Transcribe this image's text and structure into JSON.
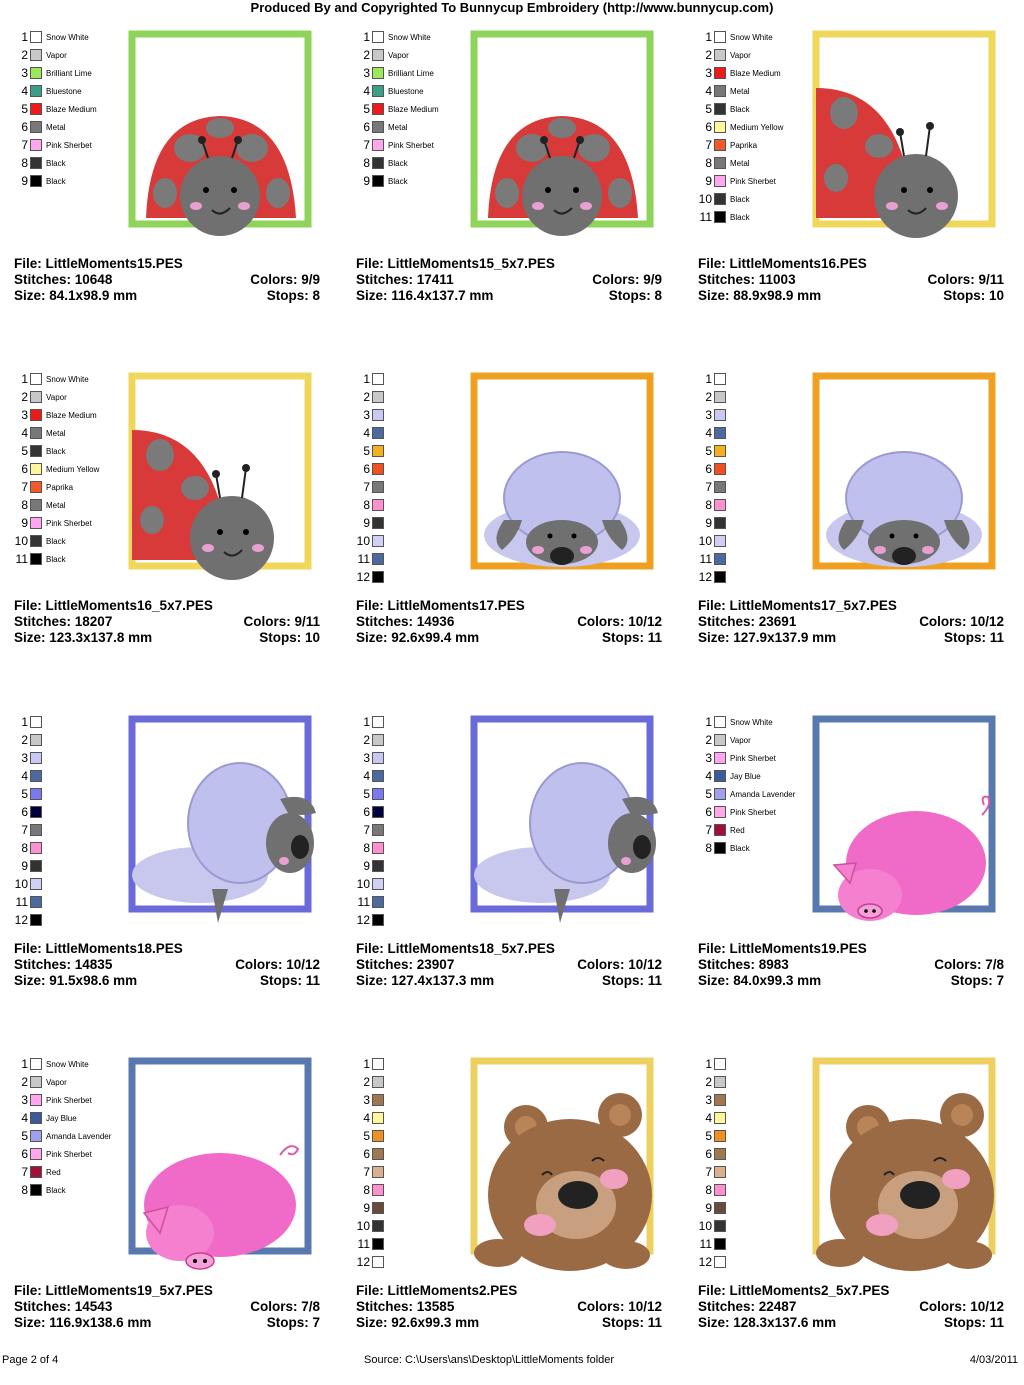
{
  "header": "Produced By and Copyrighted To Bunnycup Embroidery (http://www.bunnycup.com)",
  "labels": {
    "file": "File:",
    "stitches": "Stitches:",
    "size": "Size:",
    "colors": "Colors:",
    "stops": "Stops:"
  },
  "designs": [
    {
      "file": "LittleMoments15.PES",
      "stitches": "10648",
      "size": "84.1x98.9 mm",
      "colors": "9/9",
      "stops": "8",
      "type": "ladybug",
      "variant": "a",
      "frame": "#8fd45a",
      "thread": [
        {
          "n": "1",
          "c": "#ffffff",
          "name": "Snow White"
        },
        {
          "n": "2",
          "c": "#c8c8c8",
          "name": "Vapor"
        },
        {
          "n": "3",
          "c": "#9be85a",
          "name": "Brilliant Lime"
        },
        {
          "n": "4",
          "c": "#3a9f86",
          "name": "Bluestone"
        },
        {
          "n": "5",
          "c": "#ee1a1a",
          "name": "Blaze Medium"
        },
        {
          "n": "6",
          "c": "#787878",
          "name": "Metal"
        },
        {
          "n": "7",
          "c": "#ffa6ee",
          "name": "Pink Sherbet"
        },
        {
          "n": "8",
          "c": "#333333",
          "name": "Black"
        },
        {
          "n": "9",
          "c": "#000000",
          "name": "Black"
        }
      ]
    },
    {
      "file": "LittleMoments15_5x7.PES",
      "stitches": "17411",
      "size": "116.4x137.7 mm",
      "colors": "9/9",
      "stops": "8",
      "type": "ladybug",
      "variant": "a",
      "frame": "#8fd45a",
      "thread": [
        {
          "n": "1",
          "c": "#ffffff",
          "name": "Snow White"
        },
        {
          "n": "2",
          "c": "#c8c8c8",
          "name": "Vapor"
        },
        {
          "n": "3",
          "c": "#9be85a",
          "name": "Brilliant Lime"
        },
        {
          "n": "4",
          "c": "#3a9f86",
          "name": "Bluestone"
        },
        {
          "n": "5",
          "c": "#ee1a1a",
          "name": "Blaze Medium"
        },
        {
          "n": "6",
          "c": "#787878",
          "name": "Metal"
        },
        {
          "n": "7",
          "c": "#ffa6ee",
          "name": "Pink Sherbet"
        },
        {
          "n": "8",
          "c": "#333333",
          "name": "Black"
        },
        {
          "n": "9",
          "c": "#000000",
          "name": "Black"
        }
      ]
    },
    {
      "file": "LittleMoments16.PES",
      "stitches": "11003",
      "size": "88.9x98.9 mm",
      "colors": "9/11",
      "stops": "10",
      "type": "ladybug",
      "variant": "b",
      "frame": "#efd75c",
      "thread": [
        {
          "n": "1",
          "c": "#ffffff",
          "name": "Snow White"
        },
        {
          "n": "2",
          "c": "#c8c8c8",
          "name": "Vapor"
        },
        {
          "n": "3",
          "c": "#ee1a1a",
          "name": "Blaze Medium"
        },
        {
          "n": "4",
          "c": "#787878",
          "name": "Metal"
        },
        {
          "n": "5",
          "c": "#333333",
          "name": "Black"
        },
        {
          "n": "6",
          "c": "#fff799",
          "name": "Medium Yellow"
        },
        {
          "n": "7",
          "c": "#f25a2a",
          "name": "Paprika"
        },
        {
          "n": "8",
          "c": "#787878",
          "name": "Metal"
        },
        {
          "n": "9",
          "c": "#ffa6ee",
          "name": "Pink Sherbet"
        },
        {
          "n": "10",
          "c": "#333333",
          "name": "Black"
        },
        {
          "n": "11",
          "c": "#000000",
          "name": "Black"
        }
      ]
    },
    {
      "file": "LittleMoments16_5x7.PES",
      "stitches": "18207",
      "size": "123.3x137.8 mm",
      "colors": "9/11",
      "stops": "10",
      "type": "ladybug",
      "variant": "b",
      "frame": "#efd75c",
      "thread": [
        {
          "n": "1",
          "c": "#ffffff",
          "name": "Snow White"
        },
        {
          "n": "2",
          "c": "#c8c8c8",
          "name": "Vapor"
        },
        {
          "n": "3",
          "c": "#ee1a1a",
          "name": "Blaze Medium"
        },
        {
          "n": "4",
          "c": "#787878",
          "name": "Metal"
        },
        {
          "n": "5",
          "c": "#333333",
          "name": "Black"
        },
        {
          "n": "6",
          "c": "#fff799",
          "name": "Medium Yellow"
        },
        {
          "n": "7",
          "c": "#f25a2a",
          "name": "Paprika"
        },
        {
          "n": "8",
          "c": "#787878",
          "name": "Metal"
        },
        {
          "n": "9",
          "c": "#ffa6ee",
          "name": "Pink Sherbet"
        },
        {
          "n": "10",
          "c": "#333333",
          "name": "Black"
        },
        {
          "n": "11",
          "c": "#000000",
          "name": "Black"
        }
      ]
    },
    {
      "file": "LittleMoments17.PES",
      "stitches": "14936",
      "size": "92.6x99.4 mm",
      "colors": "10/12",
      "stops": "11",
      "type": "sheep",
      "variant": "a",
      "frame": "#f0a020",
      "thread": [
        {
          "n": "1",
          "c": "#ffffff",
          "name": ""
        },
        {
          "n": "2",
          "c": "#c8c8c8",
          "name": ""
        },
        {
          "n": "3",
          "c": "#c8c8f5",
          "name": ""
        },
        {
          "n": "4",
          "c": "#4a6aa0",
          "name": ""
        },
        {
          "n": "5",
          "c": "#f5b020",
          "name": ""
        },
        {
          "n": "6",
          "c": "#f05020",
          "name": ""
        },
        {
          "n": "7",
          "c": "#787878",
          "name": ""
        },
        {
          "n": "8",
          "c": "#ff90d0",
          "name": ""
        },
        {
          "n": "9",
          "c": "#333333",
          "name": ""
        },
        {
          "n": "10",
          "c": "#d0d0f5",
          "name": ""
        },
        {
          "n": "11",
          "c": "#4a6aa0",
          "name": ""
        },
        {
          "n": "12",
          "c": "#000000",
          "name": ""
        }
      ]
    },
    {
      "file": "LittleMoments17_5x7.PES",
      "stitches": "23691",
      "size": "127.9x137.9 mm",
      "colors": "10/12",
      "stops": "11",
      "type": "sheep",
      "variant": "a",
      "frame": "#f0a020",
      "thread": [
        {
          "n": "1",
          "c": "#ffffff",
          "name": ""
        },
        {
          "n": "2",
          "c": "#c8c8c8",
          "name": ""
        },
        {
          "n": "3",
          "c": "#c8c8f5",
          "name": ""
        },
        {
          "n": "4",
          "c": "#4a6aa0",
          "name": ""
        },
        {
          "n": "5",
          "c": "#f5b020",
          "name": ""
        },
        {
          "n": "6",
          "c": "#f05020",
          "name": ""
        },
        {
          "n": "7",
          "c": "#787878",
          "name": ""
        },
        {
          "n": "8",
          "c": "#ff90d0",
          "name": ""
        },
        {
          "n": "9",
          "c": "#333333",
          "name": ""
        },
        {
          "n": "10",
          "c": "#d0d0f5",
          "name": ""
        },
        {
          "n": "11",
          "c": "#4a6aa0",
          "name": ""
        },
        {
          "n": "12",
          "c": "#000000",
          "name": ""
        }
      ]
    },
    {
      "file": "LittleMoments18.PES",
      "stitches": "14835",
      "size": "91.5x98.6 mm",
      "colors": "10/12",
      "stops": "11",
      "type": "sheep",
      "variant": "b",
      "frame": "#6a6ad8",
      "thread": [
        {
          "n": "1",
          "c": "#ffffff",
          "name": ""
        },
        {
          "n": "2",
          "c": "#c8c8c8",
          "name": ""
        },
        {
          "n": "3",
          "c": "#c8c8f5",
          "name": ""
        },
        {
          "n": "4",
          "c": "#4a6aa0",
          "name": ""
        },
        {
          "n": "5",
          "c": "#7a7af0",
          "name": ""
        },
        {
          "n": "6",
          "c": "#000040",
          "name": ""
        },
        {
          "n": "7",
          "c": "#787878",
          "name": ""
        },
        {
          "n": "8",
          "c": "#ff90d0",
          "name": ""
        },
        {
          "n": "9",
          "c": "#333333",
          "name": ""
        },
        {
          "n": "10",
          "c": "#d0d0f5",
          "name": ""
        },
        {
          "n": "11",
          "c": "#4a6aa0",
          "name": ""
        },
        {
          "n": "12",
          "c": "#000000",
          "name": ""
        }
      ]
    },
    {
      "file": "LittleMoments18_5x7.PES",
      "stitches": "23907",
      "size": "127.4x137.3 mm",
      "colors": "10/12",
      "stops": "11",
      "type": "sheep",
      "variant": "b",
      "frame": "#6a6ad8",
      "thread": [
        {
          "n": "1",
          "c": "#ffffff",
          "name": ""
        },
        {
          "n": "2",
          "c": "#c8c8c8",
          "name": ""
        },
        {
          "n": "3",
          "c": "#c8c8f5",
          "name": ""
        },
        {
          "n": "4",
          "c": "#4a6aa0",
          "name": ""
        },
        {
          "n": "5",
          "c": "#7a7af0",
          "name": ""
        },
        {
          "n": "6",
          "c": "#000040",
          "name": ""
        },
        {
          "n": "7",
          "c": "#787878",
          "name": ""
        },
        {
          "n": "8",
          "c": "#ff90d0",
          "name": ""
        },
        {
          "n": "9",
          "c": "#333333",
          "name": ""
        },
        {
          "n": "10",
          "c": "#d0d0f5",
          "name": ""
        },
        {
          "n": "11",
          "c": "#4a6aa0",
          "name": ""
        },
        {
          "n": "12",
          "c": "#000000",
          "name": ""
        }
      ]
    },
    {
      "file": "LittleMoments19.PES",
      "stitches": "8983",
      "size": "84.0x99.3 mm",
      "colors": "7/8",
      "stops": "7",
      "type": "pig",
      "variant": "a",
      "frame": "#5a78b0",
      "thread": [
        {
          "n": "1",
          "c": "#ffffff",
          "name": "Snow White"
        },
        {
          "n": "2",
          "c": "#c8c8c8",
          "name": "Vapor"
        },
        {
          "n": "3",
          "c": "#ffa6ee",
          "name": "Pink Sherbet"
        },
        {
          "n": "4",
          "c": "#3a5a9a",
          "name": "Jay Blue"
        },
        {
          "n": "5",
          "c": "#a0a0f0",
          "name": "Amanda Lavender"
        },
        {
          "n": "6",
          "c": "#ffa6ee",
          "name": "Pink Sherbet"
        },
        {
          "n": "7",
          "c": "#a0103a",
          "name": "Red"
        },
        {
          "n": "8",
          "c": "#000000",
          "name": "Black"
        }
      ]
    },
    {
      "file": "LittleMoments19_5x7.PES",
      "stitches": "14543",
      "size": "116.9x138.6 mm",
      "colors": "7/8",
      "stops": "7",
      "type": "pig",
      "variant": "b",
      "frame": "#5a78b0",
      "thread": [
        {
          "n": "1",
          "c": "#ffffff",
          "name": "Snow White"
        },
        {
          "n": "2",
          "c": "#c8c8c8",
          "name": "Vapor"
        },
        {
          "n": "3",
          "c": "#ffa6ee",
          "name": "Pink Sherbet"
        },
        {
          "n": "4",
          "c": "#3a5a9a",
          "name": "Jay Blue"
        },
        {
          "n": "5",
          "c": "#a0a0f0",
          "name": "Amanda Lavender"
        },
        {
          "n": "6",
          "c": "#ffa6ee",
          "name": "Pink Sherbet"
        },
        {
          "n": "7",
          "c": "#a0103a",
          "name": "Red"
        },
        {
          "n": "8",
          "c": "#000000",
          "name": "Black"
        }
      ]
    },
    {
      "file": "LittleMoments2.PES",
      "stitches": "13585",
      "size": "92.6x99.3 mm",
      "colors": "10/12",
      "stops": "11",
      "type": "bear",
      "variant": "a",
      "frame": "#eed060",
      "thread": [
        {
          "n": "1",
          "c": "#ffffff",
          "name": ""
        },
        {
          "n": "2",
          "c": "#c8c8c8",
          "name": ""
        },
        {
          "n": "3",
          "c": "#a07850",
          "name": ""
        },
        {
          "n": "4",
          "c": "#fff799",
          "name": ""
        },
        {
          "n": "5",
          "c": "#f09020",
          "name": ""
        },
        {
          "n": "6",
          "c": "#a07850",
          "name": ""
        },
        {
          "n": "7",
          "c": "#d8b090",
          "name": ""
        },
        {
          "n": "8",
          "c": "#ff90d0",
          "name": ""
        },
        {
          "n": "9",
          "c": "#6a4a3a",
          "name": ""
        },
        {
          "n": "10",
          "c": "#333333",
          "name": ""
        },
        {
          "n": "11",
          "c": "#000000",
          "name": ""
        },
        {
          "n": "12",
          "c": "#ffffff",
          "name": ""
        }
      ]
    },
    {
      "file": "LittleMoments2_5x7.PES",
      "stitches": "22487",
      "size": "128.3x137.6 mm",
      "colors": "10/12",
      "stops": "11",
      "type": "bear",
      "variant": "a",
      "frame": "#eed060",
      "thread": [
        {
          "n": "1",
          "c": "#ffffff",
          "name": ""
        },
        {
          "n": "2",
          "c": "#c8c8c8",
          "name": ""
        },
        {
          "n": "3",
          "c": "#a07850",
          "name": ""
        },
        {
          "n": "4",
          "c": "#fff799",
          "name": ""
        },
        {
          "n": "5",
          "c": "#f09020",
          "name": ""
        },
        {
          "n": "6",
          "c": "#a07850",
          "name": ""
        },
        {
          "n": "7",
          "c": "#d8b090",
          "name": ""
        },
        {
          "n": "8",
          "c": "#ff90d0",
          "name": ""
        },
        {
          "n": "9",
          "c": "#6a4a3a",
          "name": ""
        },
        {
          "n": "10",
          "c": "#333333",
          "name": ""
        },
        {
          "n": "11",
          "c": "#000000",
          "name": ""
        },
        {
          "n": "12",
          "c": "#ffffff",
          "name": ""
        }
      ]
    }
  ],
  "footer": {
    "page": "Page 2 of 4",
    "source": "Source: C:\\Users\\ans\\Desktop\\LittleMoments folder",
    "date": "4/03/2011"
  }
}
